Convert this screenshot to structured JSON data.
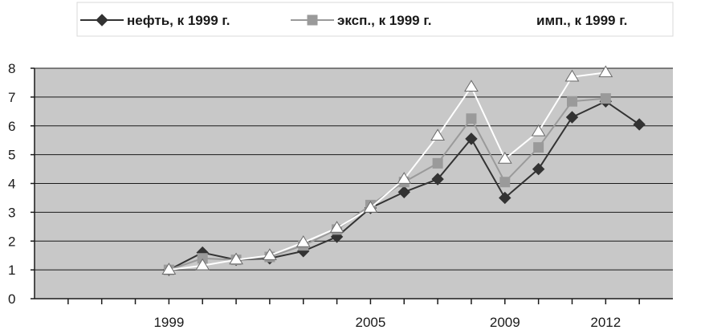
{
  "chart_data": {
    "type": "line",
    "title": "",
    "xlabel": "",
    "ylabel": "",
    "ylim": [
      0,
      8
    ],
    "yticks": [
      0,
      1,
      2,
      3,
      4,
      5,
      6,
      7,
      8
    ],
    "xlim": [
      1995,
      2014
    ],
    "xticks_labeled": [
      1999,
      2005,
      2009,
      2012
    ],
    "grid": "horizontal",
    "legend_position": "top",
    "plot_background": "#c8c8c8",
    "series": [
      {
        "name": "нефть, к 1999 г.",
        "marker": "diamond",
        "color": "#333333",
        "x": [
          1999,
          2000,
          2001,
          2002,
          2003,
          2004,
          2005,
          2006,
          2007,
          2008,
          2009,
          2010,
          2011,
          2012,
          2013
        ],
        "y": [
          1.0,
          1.6,
          1.35,
          1.4,
          1.65,
          2.15,
          3.15,
          3.7,
          4.15,
          5.55,
          3.5,
          4.5,
          6.3,
          6.85,
          6.05
        ]
      },
      {
        "name": "эксп., к 1999 г.",
        "marker": "square",
        "color": "#9a9a9a",
        "x": [
          1999,
          2000,
          2001,
          2002,
          2003,
          2004,
          2005,
          2006,
          2007,
          2008,
          2009,
          2010,
          2011,
          2012
        ],
        "y": [
          1.0,
          1.4,
          1.35,
          1.45,
          1.85,
          2.4,
          3.25,
          4.05,
          4.7,
          6.25,
          4.05,
          5.25,
          6.85,
          6.95
        ]
      },
      {
        "name": "имп., к 1999 г.",
        "marker": "triangle",
        "color": "#ffffff",
        "x": [
          1999,
          2000,
          2001,
          2002,
          2003,
          2004,
          2005,
          2006,
          2007,
          2008,
          2009,
          2010,
          2011,
          2012
        ],
        "y": [
          1.0,
          1.15,
          1.35,
          1.5,
          1.95,
          2.45,
          3.15,
          4.15,
          5.65,
          7.35,
          4.85,
          5.8,
          7.7,
          7.85
        ]
      }
    ]
  }
}
